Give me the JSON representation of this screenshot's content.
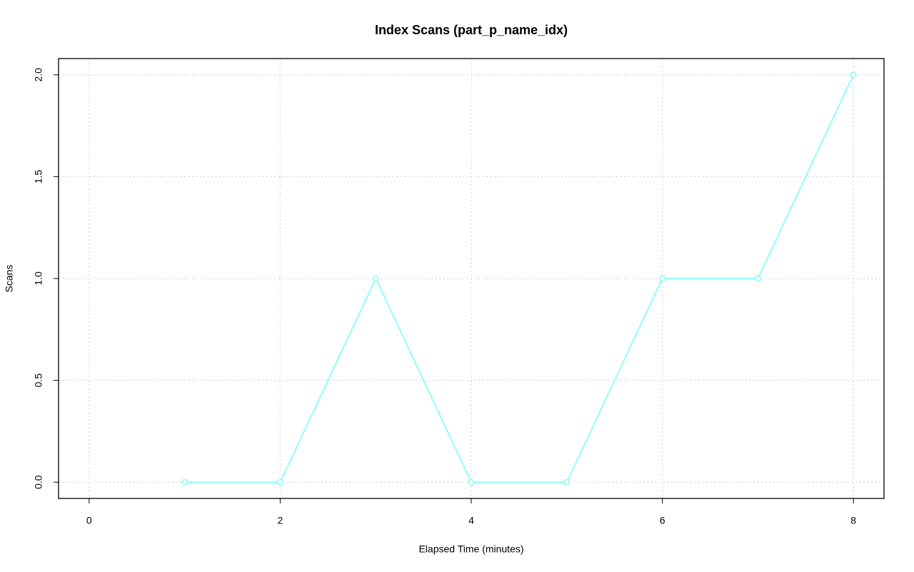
{
  "chart_data": {
    "type": "line",
    "title": "Index Scans (part_p_name_idx)",
    "x_label": "Elapsed Time (minutes)",
    "y_label": "Scans",
    "x": [
      1,
      2,
      3,
      4,
      5,
      6,
      7,
      8
    ],
    "series": [
      {
        "name": "part_p_name_idx",
        "color": "#70ffff",
        "values": [
          0,
          0,
          1,
          0,
          0,
          1,
          1,
          2
        ]
      }
    ],
    "xlim": [
      -0.32,
      8.32
    ],
    "xticks": [
      0,
      2,
      4,
      6,
      8
    ],
    "ylim": [
      -0.08,
      2.08
    ],
    "yticks": [
      {
        "value": 0,
        "label": "0.0"
      },
      {
        "value": 0.5,
        "label": "0.5"
      },
      {
        "value": 1,
        "label": "1.0"
      },
      {
        "value": 1.5,
        "label": "1.5"
      },
      {
        "value": 2,
        "label": "2.0"
      }
    ],
    "grid": true
  }
}
